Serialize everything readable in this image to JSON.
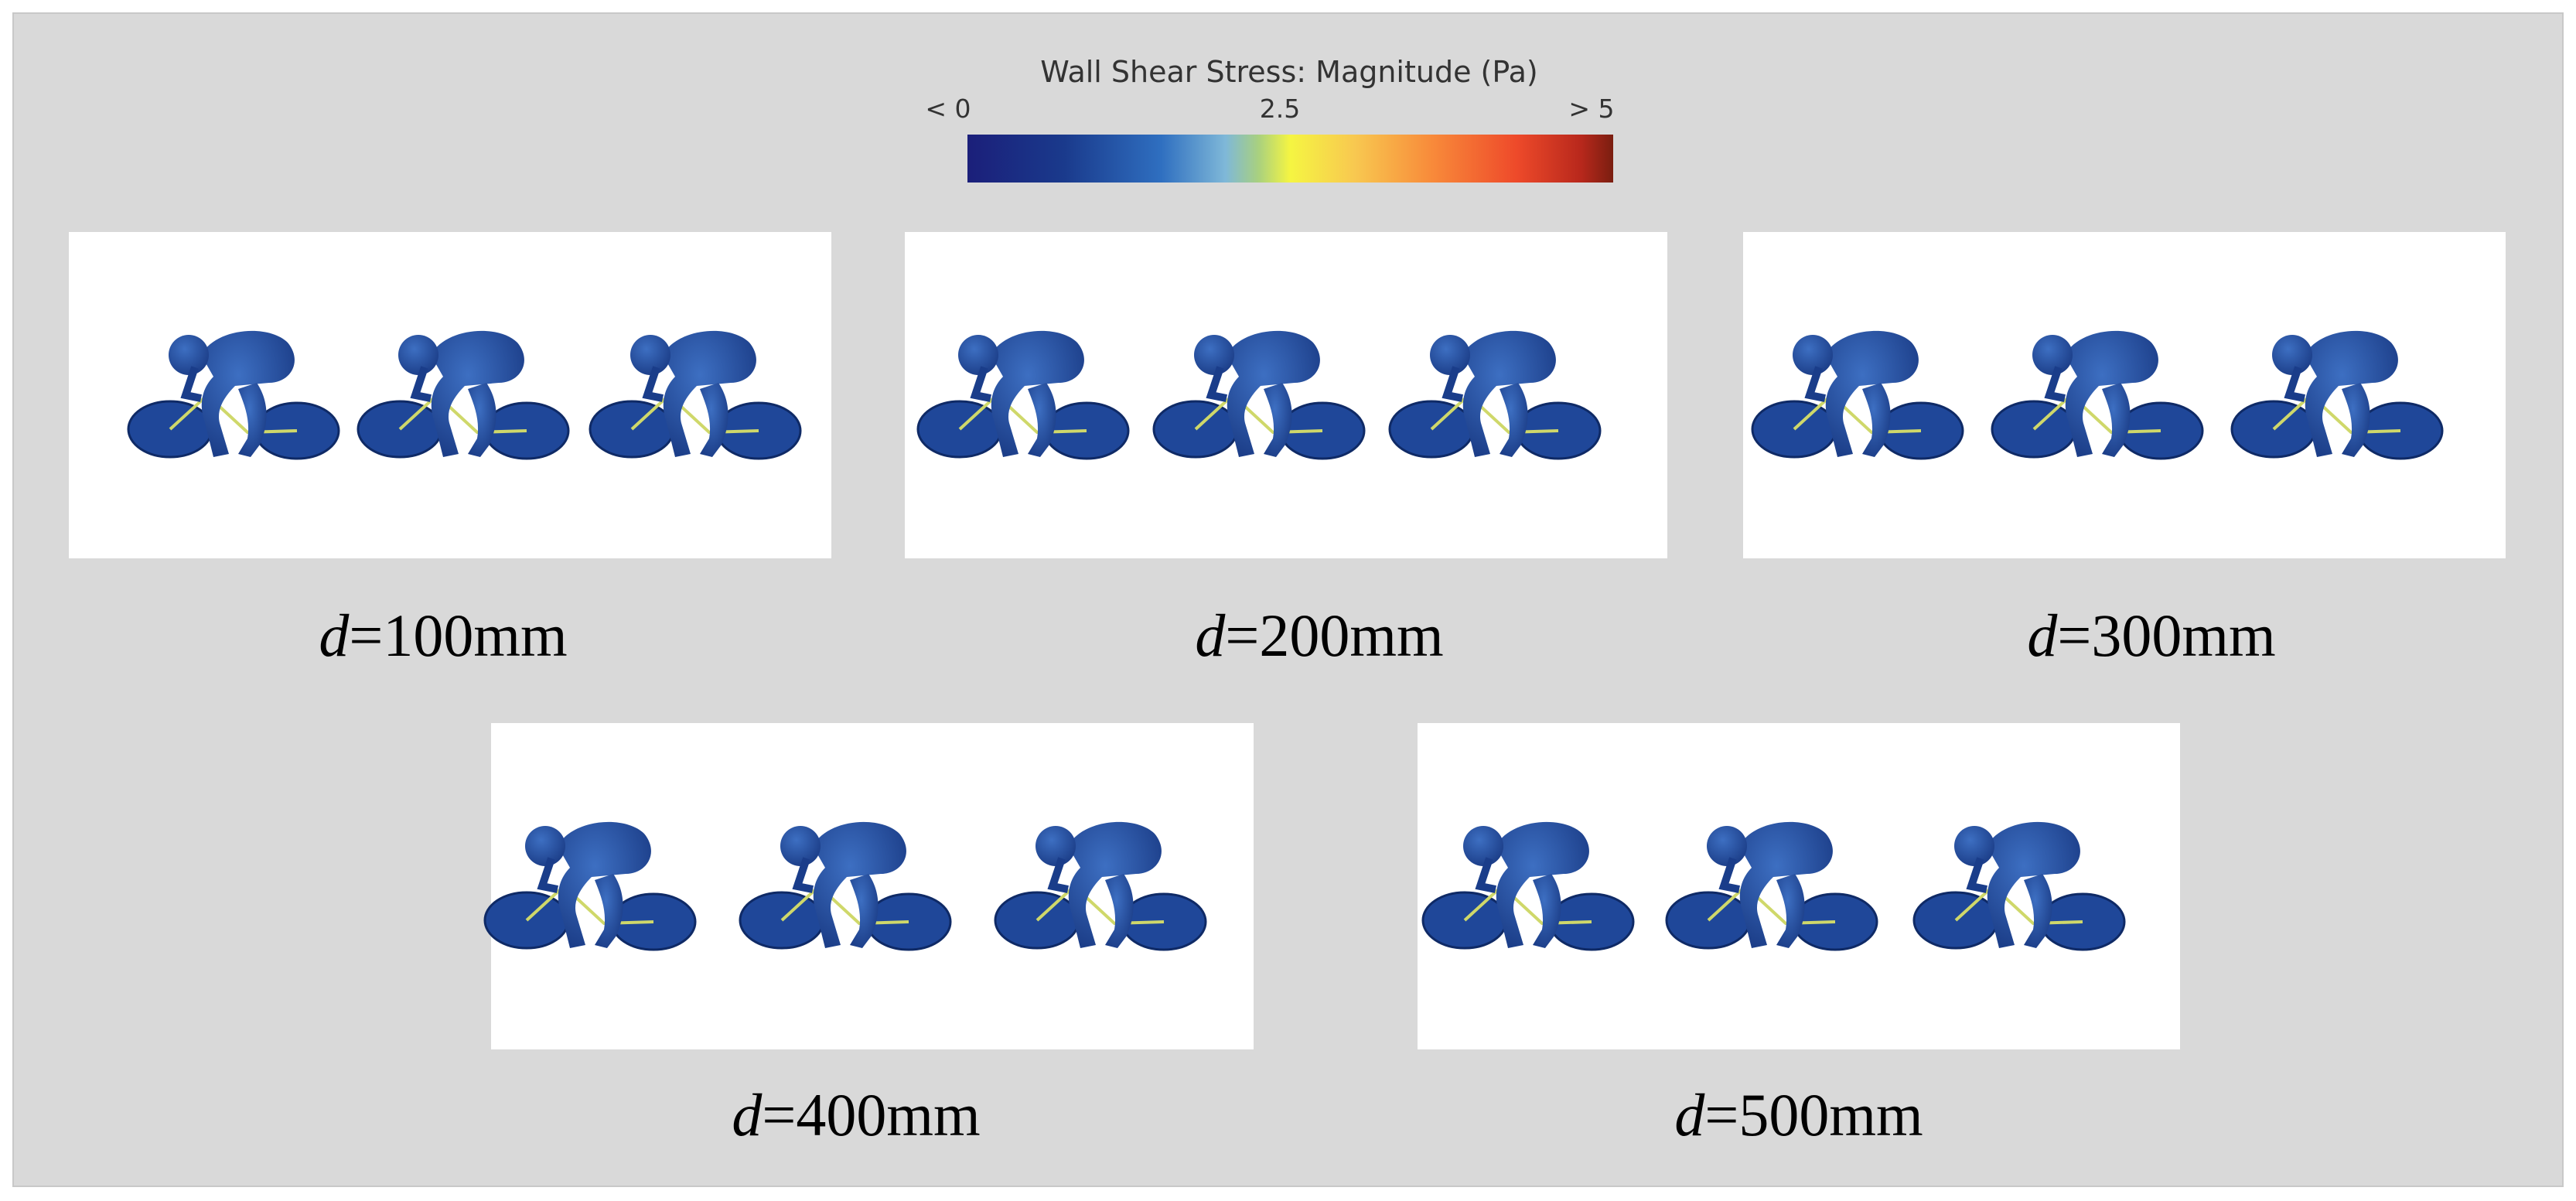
{
  "colorbar": {
    "title": "Wall Shear Stress: Magnitude (Pa)",
    "ticks": [
      "< 0",
      "2.5",
      "> 5"
    ]
  },
  "panels": [
    {
      "variable": "d",
      "label": "=100mm"
    },
    {
      "variable": "d",
      "label": "=200mm"
    },
    {
      "variable": "d",
      "label": "=300mm"
    },
    {
      "variable": "d",
      "label": "=400mm"
    },
    {
      "variable": "d",
      "label": "=500mm"
    }
  ]
}
